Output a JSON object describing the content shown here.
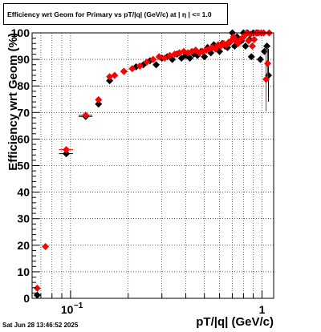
{
  "chart_data": {
    "type": "scatter",
    "title": "Efficiency wrt Geom for Primary vs pT/|q| (GeV/c) at |  η  | <= 1.0",
    "xlabel": "pT/|q| (GeV/c)",
    "ylabel": "Efficiency wrt Geom (%)",
    "x_scale": "log",
    "xlim": [
      0.063,
      1.15
    ],
    "ylim": [
      0,
      100
    ],
    "y_ticks": [
      "0",
      "10",
      "20",
      "30",
      "40",
      "50",
      "60",
      "70",
      "80",
      "90",
      "100"
    ],
    "x_tick_labels": [
      {
        "value": 0.1,
        "base": "10",
        "exp": "−1"
      },
      {
        "value": 1,
        "text": "1"
      }
    ],
    "grid": true,
    "series": [
      {
        "color": "#000000",
        "points": [
          {
            "x": 0.067,
            "y": 1.2,
            "xerr": 0.002
          },
          {
            "x": 0.095,
            "y": 54.5,
            "xerr": 0.008
          },
          {
            "x": 0.12,
            "y": 68.5,
            "xerr": 0.01
          },
          {
            "x": 0.14,
            "y": 73.2,
            "xerr": 0.005
          },
          {
            "x": 0.16,
            "y": 82.0
          },
          {
            "x": 0.19,
            "y": 85.5
          },
          {
            "x": 0.22,
            "y": 87.2
          },
          {
            "x": 0.24,
            "y": 88.0
          },
          {
            "x": 0.26,
            "y": 89.5
          },
          {
            "x": 0.28,
            "y": 88.0
          },
          {
            "x": 0.3,
            "y": 90.5
          },
          {
            "x": 0.32,
            "y": 91.0
          },
          {
            "x": 0.34,
            "y": 90.0
          },
          {
            "x": 0.36,
            "y": 92.0
          },
          {
            "x": 0.38,
            "y": 90.5
          },
          {
            "x": 0.4,
            "y": 91.5
          },
          {
            "x": 0.42,
            "y": 90.5
          },
          {
            "x": 0.44,
            "y": 92.0
          },
          {
            "x": 0.46,
            "y": 91.5
          },
          {
            "x": 0.48,
            "y": 93.0
          },
          {
            "x": 0.5,
            "y": 91.0
          },
          {
            "x": 0.52,
            "y": 94.5
          },
          {
            "x": 0.54,
            "y": 92.5
          },
          {
            "x": 0.56,
            "y": 95.5
          },
          {
            "x": 0.58,
            "y": 94.0
          },
          {
            "x": 0.6,
            "y": 93.0
          },
          {
            "x": 0.62,
            "y": 96.0
          },
          {
            "x": 0.64,
            "y": 95.0
          },
          {
            "x": 0.66,
            "y": 94.5
          },
          {
            "x": 0.68,
            "y": 96.5
          },
          {
            "x": 0.7,
            "y": 100.0
          },
          {
            "x": 0.72,
            "y": 95.0
          },
          {
            "x": 0.74,
            "y": 98.5
          },
          {
            "x": 0.76,
            "y": 96.5
          },
          {
            "x": 0.78,
            "y": 97.0
          },
          {
            "x": 0.8,
            "y": 100.0
          },
          {
            "x": 0.82,
            "y": 95.0
          },
          {
            "x": 0.84,
            "y": 100.0
          },
          {
            "x": 0.86,
            "y": 97.5
          },
          {
            "x": 0.88,
            "y": 91.0
          },
          {
            "x": 0.9,
            "y": 100.0
          },
          {
            "x": 0.94,
            "y": 100.0
          },
          {
            "x": 0.98,
            "y": 90.0
          },
          {
            "x": 1.03,
            "y": 93.0
          },
          {
            "x": 1.06,
            "y": 95.0
          },
          {
            "x": 1.08,
            "y": 84.0,
            "yerr": 10
          }
        ]
      },
      {
        "color": "#ff0000",
        "points": [
          {
            "x": 0.067,
            "y": 3.8,
            "xerr": 0.002
          },
          {
            "x": 0.074,
            "y": 19.5
          },
          {
            "x": 0.095,
            "y": 56.0,
            "xerr": 0.008
          },
          {
            "x": 0.12,
            "y": 69.0,
            "xerr": 0.01
          },
          {
            "x": 0.14,
            "y": 74.8,
            "xerr": 0.005
          },
          {
            "x": 0.16,
            "y": 83.5
          },
          {
            "x": 0.17,
            "y": 84.0
          },
          {
            "x": 0.19,
            "y": 85.5
          },
          {
            "x": 0.21,
            "y": 86.5
          },
          {
            "x": 0.23,
            "y": 87.5
          },
          {
            "x": 0.25,
            "y": 89.0
          },
          {
            "x": 0.27,
            "y": 90.0
          },
          {
            "x": 0.29,
            "y": 91.0
          },
          {
            "x": 0.31,
            "y": 90.5
          },
          {
            "x": 0.33,
            "y": 91.5
          },
          {
            "x": 0.35,
            "y": 92.0
          },
          {
            "x": 0.37,
            "y": 92.5
          },
          {
            "x": 0.39,
            "y": 93.0
          },
          {
            "x": 0.41,
            "y": 92.5
          },
          {
            "x": 0.43,
            "y": 93.0
          },
          {
            "x": 0.45,
            "y": 93.5
          },
          {
            "x": 0.47,
            "y": 92.5
          },
          {
            "x": 0.49,
            "y": 93.0
          },
          {
            "x": 0.51,
            "y": 93.5
          },
          {
            "x": 0.53,
            "y": 94.0
          },
          {
            "x": 0.55,
            "y": 94.5
          },
          {
            "x": 0.57,
            "y": 94.0
          },
          {
            "x": 0.59,
            "y": 95.5
          },
          {
            "x": 0.61,
            "y": 95.0
          },
          {
            "x": 0.63,
            "y": 96.0
          },
          {
            "x": 0.65,
            "y": 95.5
          },
          {
            "x": 0.67,
            "y": 96.5
          },
          {
            "x": 0.69,
            "y": 97.0
          },
          {
            "x": 0.71,
            "y": 98.5
          },
          {
            "x": 0.73,
            "y": 97.0
          },
          {
            "x": 0.75,
            "y": 96.0
          },
          {
            "x": 0.77,
            "y": 97.5
          },
          {
            "x": 0.79,
            "y": 98.0
          },
          {
            "x": 0.81,
            "y": 99.0
          },
          {
            "x": 0.83,
            "y": 100.0
          },
          {
            "x": 0.85,
            "y": 97.0
          },
          {
            "x": 0.87,
            "y": 99.5
          },
          {
            "x": 0.89,
            "y": 95.0
          },
          {
            "x": 0.91,
            "y": 97.5
          },
          {
            "x": 0.93,
            "y": 100.0
          },
          {
            "x": 0.96,
            "y": 100.0
          },
          {
            "x": 0.99,
            "y": 100.0
          },
          {
            "x": 1.02,
            "y": 100.0
          },
          {
            "x": 1.05,
            "y": 82.5,
            "yerr": 12
          },
          {
            "x": 1.07,
            "y": 88.5,
            "yerr": 6
          },
          {
            "x": 1.09,
            "y": 100.0
          }
        ]
      }
    ]
  },
  "footer": {
    "date": "Sat Jun 28 13:46:52 2025"
  }
}
